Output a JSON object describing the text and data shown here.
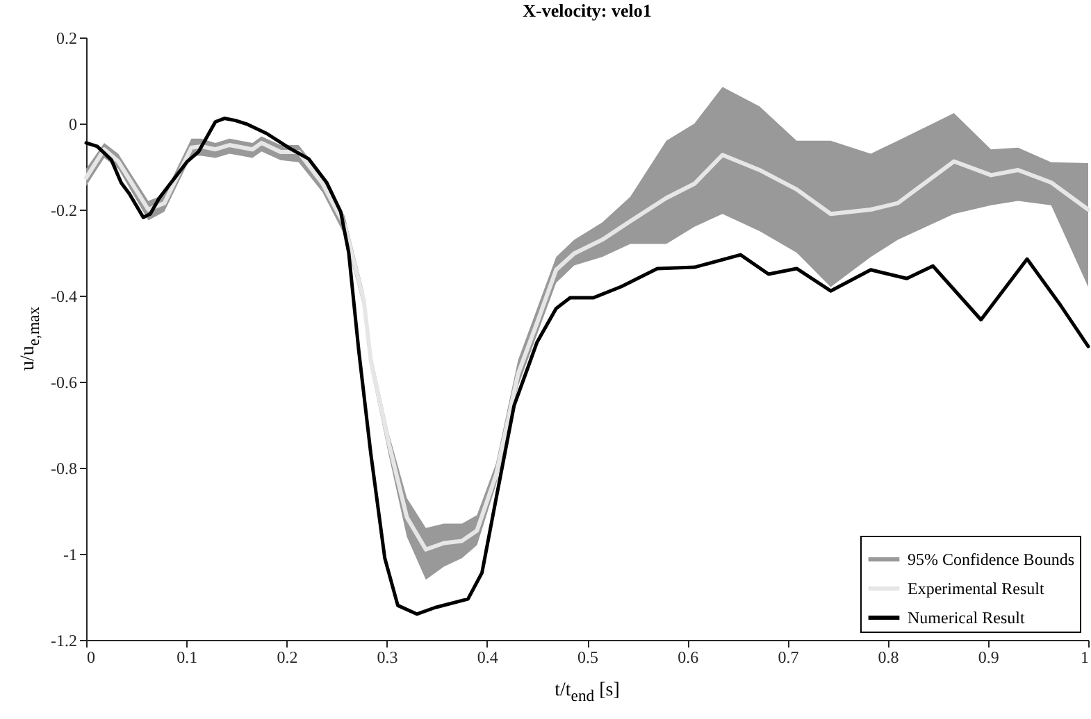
{
  "chart_data": {
    "type": "line",
    "title": "X-velocity: velo1",
    "xlabel": "t/t$_{end}$ [s]",
    "ylabel": "u/u$_{e,max}$",
    "xlim": [
      0,
      1
    ],
    "xticks": [
      0,
      0.1,
      0.2,
      0.3,
      0.4,
      0.5,
      0.6,
      0.7,
      0.8,
      0.9,
      1
    ],
    "ylim": [
      -1.2,
      0.2
    ],
    "yticks": [
      -1.2,
      -1,
      -0.8,
      -0.6,
      -0.4,
      -0.2,
      0,
      0.2
    ],
    "grid": false,
    "legend": "bottom right",
    "line_style": "solid",
    "marker": "none",
    "annotations": [
      "95% Confidence Bounds"
    ],
    "series": [
      {
        "name": "Experimental Result",
        "color": "#e6e6e6",
        "x": [
          0,
          0.018,
          0.032,
          0.062,
          0.078,
          0.105,
          0.115,
          0.129,
          0.143,
          0.166,
          0.175,
          0.194,
          0.212,
          0.236,
          0.258,
          0.277,
          0.284,
          0.302,
          0.32,
          0.339,
          0.357,
          0.375,
          0.39,
          0.409,
          0.431,
          0.45,
          0.469,
          0.487,
          0.515,
          0.543,
          0.579,
          0.607,
          0.635,
          0.672,
          0.709,
          0.743,
          0.783,
          0.81,
          0.866,
          0.903,
          0.93,
          0.963,
          1.0
        ],
        "values": [
          -0.126,
          -0.06,
          -0.088,
          -0.2,
          -0.185,
          -0.056,
          -0.053,
          -0.06,
          -0.05,
          -0.06,
          -0.045,
          -0.066,
          -0.066,
          -0.14,
          -0.237,
          -0.41,
          -0.55,
          -0.743,
          -0.915,
          -0.99,
          -0.975,
          -0.97,
          -0.946,
          -0.817,
          -0.582,
          -0.463,
          -0.34,
          -0.302,
          -0.27,
          -0.227,
          -0.173,
          -0.14,
          -0.073,
          -0.108,
          -0.153,
          -0.21,
          -0.2,
          -0.185,
          -0.088,
          -0.12,
          -0.108,
          -0.137,
          -0.2
        ],
        "lower": [
          -0.145,
          -0.08,
          -0.105,
          -0.225,
          -0.205,
          -0.075,
          -0.075,
          -0.08,
          -0.07,
          -0.08,
          -0.065,
          -0.085,
          -0.09,
          -0.16,
          -0.26,
          -0.43,
          -0.57,
          -0.77,
          -0.96,
          -1.06,
          -1.03,
          -1.01,
          -0.98,
          -0.84,
          -0.61,
          -0.49,
          -0.37,
          -0.33,
          -0.31,
          -0.28,
          -0.28,
          -0.24,
          -0.21,
          -0.25,
          -0.3,
          -0.38,
          -0.31,
          -0.27,
          -0.21,
          -0.19,
          -0.18,
          -0.19,
          -0.38
        ],
        "upper": [
          -0.105,
          -0.045,
          -0.07,
          -0.18,
          -0.165,
          -0.035,
          -0.035,
          -0.045,
          -0.035,
          -0.045,
          -0.03,
          -0.05,
          -0.05,
          -0.12,
          -0.215,
          -0.39,
          -0.53,
          -0.72,
          -0.87,
          -0.94,
          -0.93,
          -0.93,
          -0.91,
          -0.79,
          -0.55,
          -0.43,
          -0.31,
          -0.27,
          -0.23,
          -0.17,
          -0.04,
          0,
          0.085,
          0.04,
          -0.04,
          -0.04,
          -0.07,
          -0.04,
          0.024,
          -0.06,
          -0.056,
          -0.09,
          -0.092
        ]
      },
      {
        "name": "Numerical Result",
        "color": "#000000",
        "x": [
          0,
          0.011,
          0.025,
          0.035,
          0.043,
          0.057,
          0.064,
          0.073,
          0.101,
          0.112,
          0.129,
          0.138,
          0.149,
          0.161,
          0.18,
          0.202,
          0.222,
          0.24,
          0.254,
          0.262,
          0.272,
          0.284,
          0.298,
          0.311,
          0.33,
          0.348,
          0.381,
          0.395,
          0.409,
          0.427,
          0.45,
          0.469,
          0.483,
          0.506,
          0.534,
          0.57,
          0.607,
          0.653,
          0.681,
          0.709,
          0.743,
          0.783,
          0.819,
          0.845,
          0.893,
          0.939,
          0.972,
          1.0
        ],
        "values": [
          -0.045,
          -0.053,
          -0.084,
          -0.138,
          -0.163,
          -0.218,
          -0.21,
          -0.173,
          -0.088,
          -0.066,
          0.004,
          0.012,
          0.007,
          -0.002,
          -0.023,
          -0.056,
          -0.082,
          -0.137,
          -0.205,
          -0.3,
          -0.527,
          -0.766,
          -1.01,
          -1.12,
          -1.14,
          -1.125,
          -1.105,
          -1.044,
          -0.873,
          -0.656,
          -0.508,
          -0.43,
          -0.405,
          -0.405,
          -0.379,
          -0.337,
          -0.334,
          -0.305,
          -0.35,
          -0.337,
          -0.389,
          -0.34,
          -0.36,
          -0.331,
          -0.456,
          -0.315,
          -0.421,
          -0.518
        ]
      }
    ]
  }
}
